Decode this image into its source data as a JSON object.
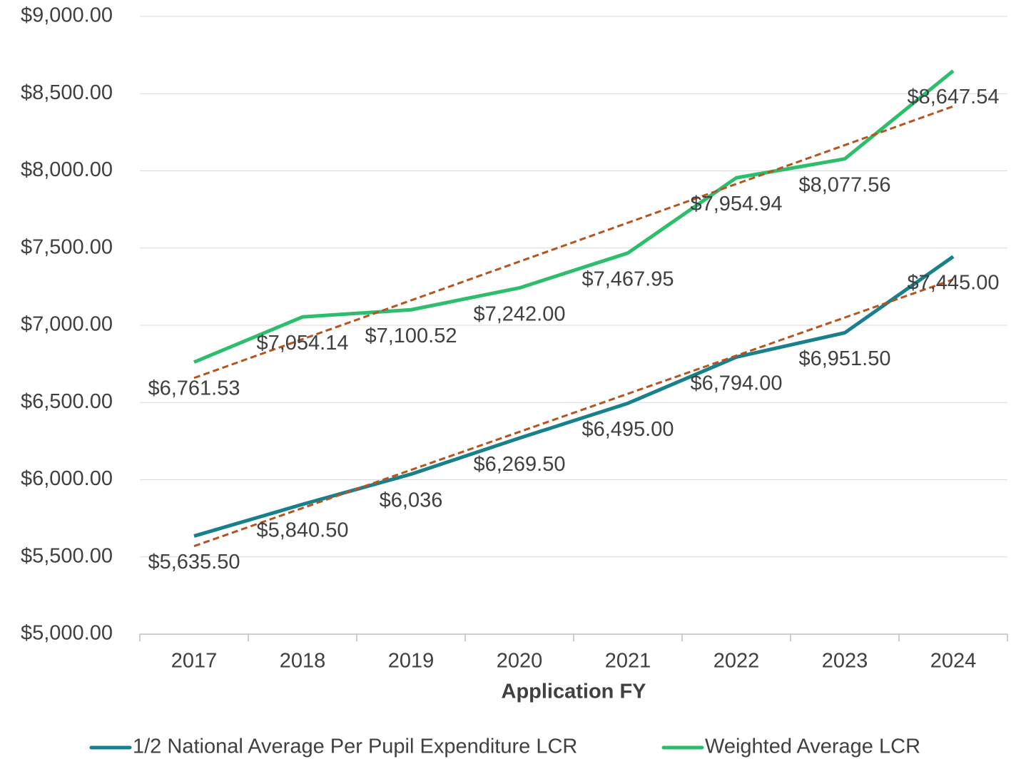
{
  "chart_data": {
    "type": "line",
    "x_label": "Application FY",
    "categories": [
      "2017",
      "2018",
      "2019",
      "2020",
      "2021",
      "2022",
      "2023",
      "2024"
    ],
    "series": [
      {
        "name": "1/2 National Average Per Pupil Expenditure LCR",
        "color": "#17808b",
        "values": [
          5635.5,
          5840.5,
          6036,
          6269.5,
          6495,
          6794,
          6951.5,
          7445
        ],
        "value_labels": [
          "$5,635.50",
          "$5,840.50",
          "$6,036",
          "$6,269.50",
          "$6,495.00",
          "$6,794.00",
          "$6,951.50",
          "$7,445.00"
        ]
      },
      {
        "name": "Weighted Average LCR",
        "color": "#2dbe6c",
        "values": [
          6761.53,
          7054.14,
          7100.52,
          7242,
          7467.95,
          7954.94,
          8077.56,
          8647.54
        ],
        "value_labels": [
          "$6,761.53",
          "$7,054.14",
          "$7,100.52",
          "$7,242.00",
          "$7,467.95",
          "$7,954.94",
          "$8,077.56",
          "$8,647.54"
        ]
      }
    ],
    "trendline": "linear",
    "trendline_color": "#b5541e",
    "ylim": [
      5000,
      9000
    ],
    "yticks": [
      {
        "value": 5000,
        "label": "$5,000.00"
      },
      {
        "value": 5500,
        "label": "$5,500.00"
      },
      {
        "value": 6000,
        "label": "$6,000.00"
      },
      {
        "value": 6500,
        "label": "$6,500.00"
      },
      {
        "value": 7000,
        "label": "$7,000.00"
      },
      {
        "value": 7500,
        "label": "$7,500.00"
      },
      {
        "value": 8000,
        "label": "$8,000.00"
      },
      {
        "value": 8500,
        "label": "$8,500.00"
      },
      {
        "value": 9000,
        "label": "$9,000.00"
      }
    ],
    "grid": true,
    "legend": "bottom"
  }
}
